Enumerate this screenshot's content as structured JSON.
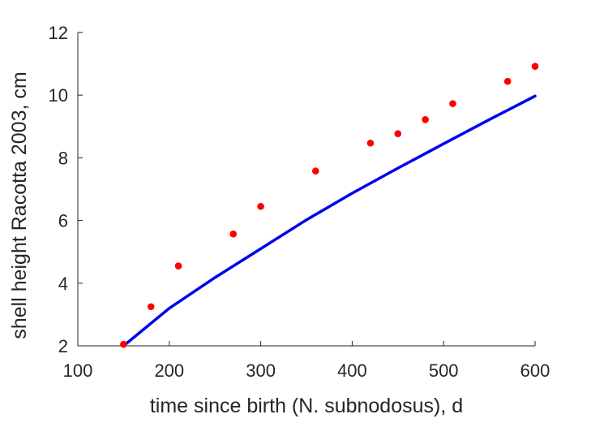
{
  "chart_data": {
    "type": "scatter",
    "title": "",
    "xlabel": "time since birth (N. subnodosus), d",
    "ylabel": "shell height Racotta 2003, cm",
    "xlim": [
      100,
      600
    ],
    "ylim": [
      2,
      12
    ],
    "xticks": [
      100,
      200,
      300,
      400,
      500,
      600
    ],
    "yticks": [
      2,
      4,
      6,
      8,
      10,
      12
    ],
    "xtick_labels": [
      "100",
      "200",
      "300",
      "400",
      "500",
      "600"
    ],
    "ytick_labels": [
      "2",
      "4",
      "6",
      "8",
      "10",
      "12"
    ],
    "grid": false,
    "series": [
      {
        "type": "scatter",
        "color": "#ff0000",
        "x": [
          150,
          180,
          210,
          270,
          300,
          360,
          420,
          450,
          480,
          510,
          570,
          600
        ],
        "y": [
          2.05,
          3.25,
          4.55,
          5.57,
          6.45,
          7.58,
          8.47,
          8.77,
          9.22,
          9.73,
          10.44,
          10.92
        ]
      },
      {
        "type": "line",
        "color": "#0000ee",
        "x": [
          150,
          200,
          250,
          300,
          350,
          400,
          450,
          500,
          550,
          600
        ],
        "y": [
          2.0,
          3.2,
          4.18,
          5.1,
          6.02,
          6.87,
          7.67,
          8.45,
          9.22,
          9.97
        ]
      }
    ]
  }
}
